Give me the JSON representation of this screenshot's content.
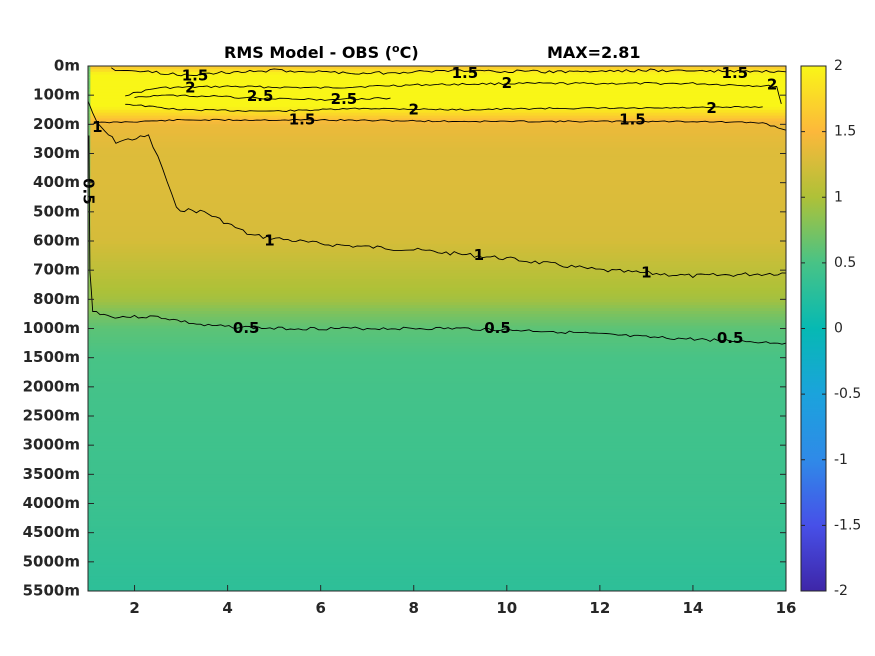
{
  "chart_data": {
    "type": "heatmap",
    "title": "RMS Model - OBS (°C)",
    "title_main": "RMS Model - OBS (",
    "title_deg": "o",
    "title_unit": "C)",
    "max_label": "MAX=2.81",
    "x": {
      "range": [
        1,
        16
      ],
      "ticks": [
        2,
        4,
        6,
        8,
        10,
        12,
        14,
        16
      ],
      "tick_labels": [
        "2",
        "4",
        "6",
        "8",
        "10",
        "12",
        "14",
        "16"
      ]
    },
    "y": {
      "depth_labels": [
        "0m",
        "100m",
        "200m",
        "300m",
        "400m",
        "500m",
        "600m",
        "700m",
        "800m",
        "1000m",
        "1500m",
        "2000m",
        "2500m",
        "3000m",
        "3500m",
        "4000m",
        "4500m",
        "5000m",
        "5500m"
      ],
      "reversed": true
    },
    "colorbar": {
      "range": [
        -2,
        2
      ],
      "ticks": [
        2,
        1.5,
        1,
        0.5,
        0,
        -0.5,
        -1,
        -1.5,
        -2
      ],
      "tick_labels": [
        "2",
        "1.5",
        "1",
        "0.5",
        "0",
        "-0.5",
        "-1",
        "-1.5",
        "-2"
      ],
      "colormap": "parula"
    },
    "field_profile": {
      "depth_index": [
        0,
        0.5,
        1,
        1.5,
        2,
        3,
        4,
        5,
        6,
        7,
        8,
        8.5,
        9,
        10,
        11,
        12,
        13,
        14,
        15,
        16,
        17,
        18
      ],
      "rms": [
        1.6,
        2.3,
        2.4,
        1.9,
        1.4,
        1.3,
        1.3,
        1.28,
        1.25,
        1.1,
        0.95,
        0.75,
        0.6,
        0.5,
        0.47,
        0.45,
        0.43,
        0.42,
        0.4,
        0.37,
        0.33,
        0.3
      ]
    },
    "contours": [
      {
        "level": "0.5",
        "label_positions": [
          [
            4.4,
            9.0
          ],
          [
            9.8,
            9.0
          ],
          [
            14.8,
            9.35
          ]
        ]
      },
      {
        "level": "1",
        "label_positions": [
          [
            4.9,
            6.0
          ],
          [
            9.4,
            6.5
          ],
          [
            13.0,
            7.1
          ]
        ]
      },
      {
        "level": "1.5",
        "label_positions": [
          [
            3.3,
            0.35
          ],
          [
            5.6,
            1.85
          ],
          [
            9.1,
            0.25
          ],
          [
            12.7,
            1.85
          ],
          [
            14.9,
            0.25
          ]
        ]
      },
      {
        "level": "2",
        "label_positions": [
          [
            3.2,
            0.75
          ],
          [
            8.0,
            1.5
          ],
          [
            10.0,
            0.6
          ],
          [
            14.4,
            1.45
          ],
          [
            15.7,
            0.65
          ]
        ]
      },
      {
        "level": "2.5",
        "label_positions": [
          [
            4.7,
            1.05
          ],
          [
            6.5,
            1.15
          ]
        ]
      }
    ],
    "extra_contour_labels": [
      {
        "level": "1",
        "pos": [
          1.2,
          2.1
        ]
      },
      {
        "level": "0.5",
        "pos": [
          1.0,
          4.3
        ],
        "rotate": 90
      }
    ],
    "grid": false
  }
}
